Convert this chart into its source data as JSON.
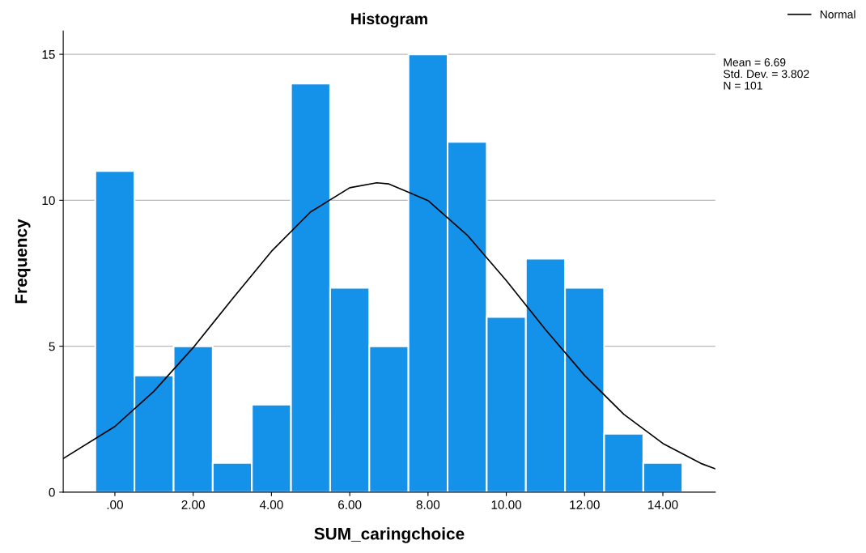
{
  "chart_data": {
    "type": "histogram",
    "title": "Histogram",
    "xlabel": "SUM_caringchoice",
    "ylabel": "Frequency",
    "bins": [
      -0.5,
      0.5,
      1.5,
      2.5,
      3.5,
      4.5,
      5.5,
      6.5,
      7.5,
      8.5,
      9.5,
      10.5,
      11.5,
      12.5,
      13.5,
      14.5
    ],
    "values": [
      11,
      4,
      5,
      1,
      3,
      14,
      7,
      5,
      15,
      12,
      6,
      8,
      7,
      2,
      1
    ],
    "color": "#1491e8",
    "series": [
      {
        "name": "Normal",
        "type": "line",
        "color": "#000000",
        "x": [
          -1.32,
          0,
          1,
          2,
          3,
          4,
          5,
          6,
          6.69,
          7,
          8,
          9,
          10,
          11,
          12,
          13,
          14,
          15,
          15.34
        ],
        "values": [
          1.15,
          2.25,
          3.46,
          4.95,
          6.62,
          8.25,
          9.6,
          10.43,
          10.6,
          10.56,
          9.99,
          8.81,
          7.25,
          5.57,
          4.0,
          2.67,
          1.67,
          0.97,
          0.8
        ]
      }
    ],
    "xlim": [
      -1.32,
      15.34
    ],
    "ylim": [
      0,
      15.8
    ],
    "xticks": [
      {
        "value": 0,
        "label": ".00"
      },
      {
        "value": 2,
        "label": "2.00"
      },
      {
        "value": 4,
        "label": "4.00"
      },
      {
        "value": 6,
        "label": "6.00"
      },
      {
        "value": 8,
        "label": "8.00"
      },
      {
        "value": 10,
        "label": "10.00"
      },
      {
        "value": 12,
        "label": "12.00"
      },
      {
        "value": 14,
        "label": "14.00"
      }
    ],
    "yticks": [
      0,
      5,
      10,
      15
    ],
    "grid": "y",
    "legend": "top right",
    "annotations": [
      "Mean = 6.69",
      "Std. Dev. = 3.802",
      "N = 101"
    ]
  }
}
